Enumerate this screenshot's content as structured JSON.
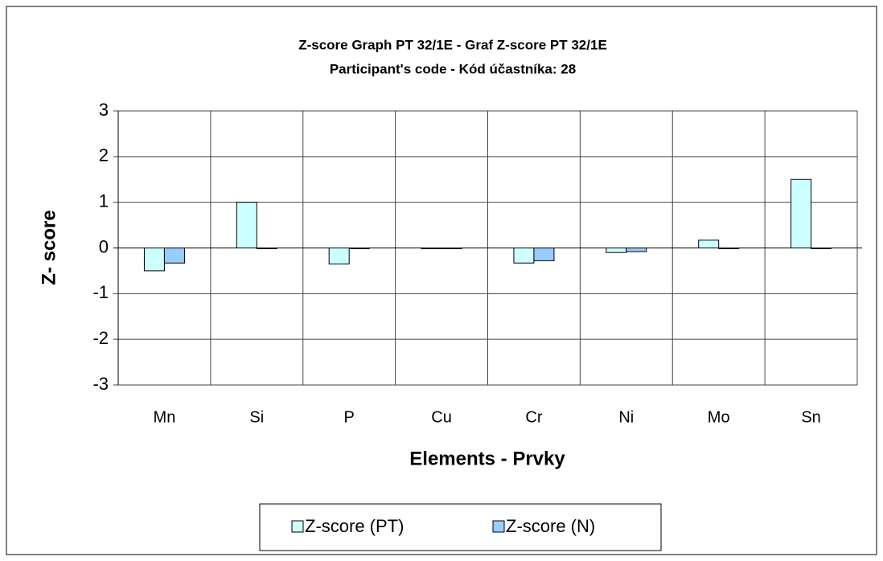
{
  "chart_data": {
    "type": "bar",
    "title": "Z-score Graph PT 32/1E - Graf Z-score PT 32/1E",
    "subtitle": "Participant's code - Kód účastníka:  28",
    "x_label": "Elements - Prvky",
    "y_label": "Z- score",
    "categories": [
      "Mn",
      "Si",
      "P",
      "Cu",
      "Cr",
      "Ni",
      "Mo",
      "Sn"
    ],
    "series": [
      {
        "name": "Z-score (PT)",
        "color": "#ccffff",
        "values": [
          -0.5,
          1.0,
          -0.35,
          0,
          -0.33,
          -0.1,
          0.17,
          1.5
        ]
      },
      {
        "name": "Z-score (N)",
        "color": "#99ccff",
        "values": [
          -0.33,
          0,
          0,
          0,
          -0.28,
          -0.08,
          0,
          0
        ]
      }
    ],
    "ylim": [
      -3,
      3
    ],
    "yticks": [
      -3,
      -2,
      -1,
      0,
      1,
      2,
      3
    ],
    "grid": true,
    "legend": "bottom"
  }
}
